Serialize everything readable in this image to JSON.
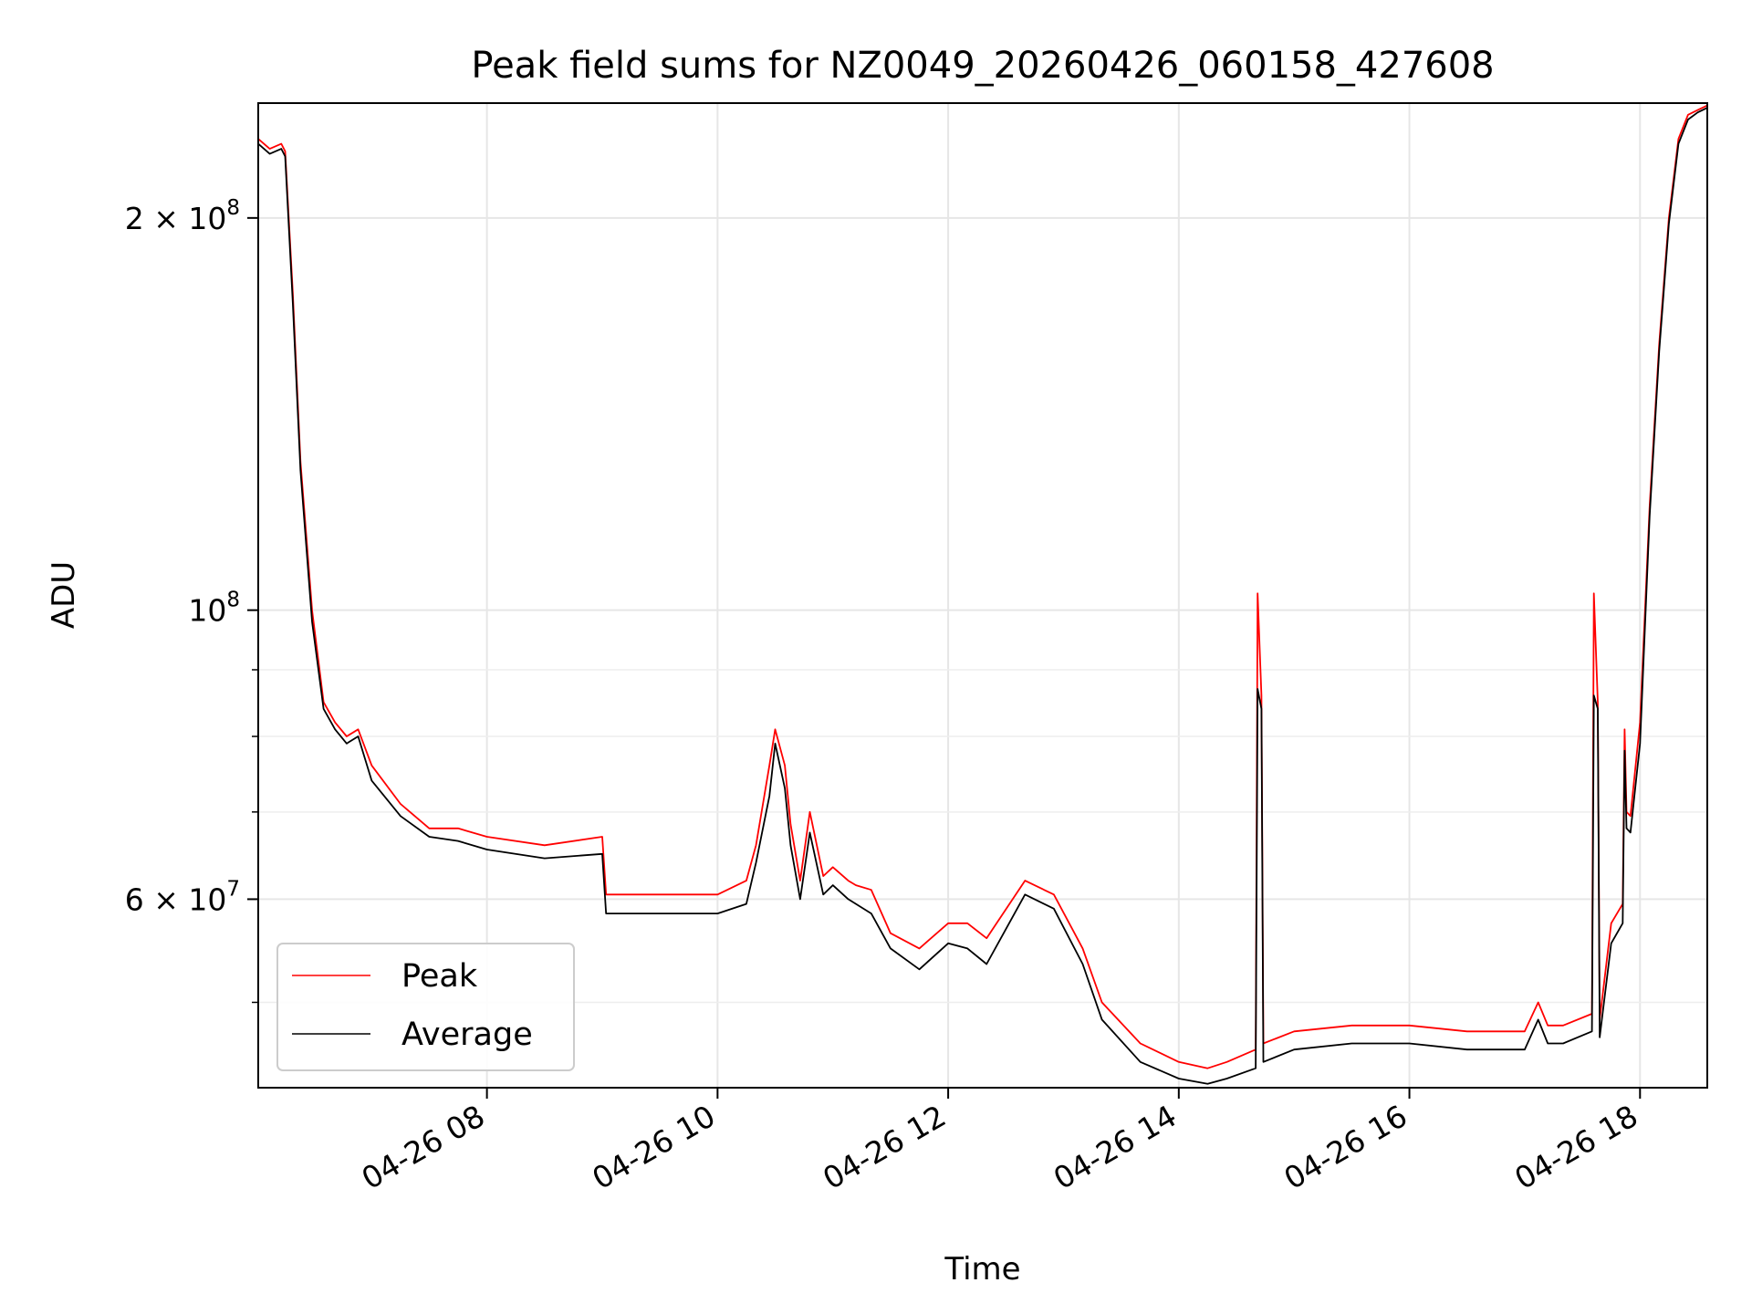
{
  "chart_data": {
    "type": "line",
    "title": "Peak field sums for NZ0049_20260426_060158_427608",
    "xlabel": "Time",
    "ylabel": "ADU",
    "yscale": "log",
    "grid": true,
    "legend_placement": "lower-left",
    "xlim": [
      "2026-04-26 06:01",
      "2026-04-26 18:35"
    ],
    "ylim": [
      43000000,
      245000000
    ],
    "x_ticks": [
      {
        "value": "2026-04-26 08:00",
        "label": "04-26 08"
      },
      {
        "value": "2026-04-26 10:00",
        "label": "04-26 10"
      },
      {
        "value": "2026-04-26 12:00",
        "label": "04-26 12"
      },
      {
        "value": "2026-04-26 14:00",
        "label": "04-26 14"
      },
      {
        "value": "2026-04-26 16:00",
        "label": "04-26 16"
      },
      {
        "value": "2026-04-26 18:00",
        "label": "04-26 18"
      }
    ],
    "y_major_ticks": [
      {
        "value": 200000000,
        "label_base": "2 × 10",
        "label_exp": "8"
      },
      {
        "value": 100000000,
        "label_base": "10",
        "label_exp": "8"
      },
      {
        "value": 60000000,
        "label_base": "6 × 10",
        "label_exp": "7"
      }
    ],
    "y_minor_ticks": [
      50000000,
      70000000,
      80000000,
      90000000
    ],
    "x_values": [
      "2026-04-26 06:01",
      "2026-04-26 06:07",
      "2026-04-26 06:13",
      "2026-04-26 06:15",
      "2026-04-26 06:19",
      "2026-04-26 06:23",
      "2026-04-26 06:29",
      "2026-04-26 06:35",
      "2026-04-26 06:41",
      "2026-04-26 06:47",
      "2026-04-26 06:53",
      "2026-04-26 07:00",
      "2026-04-26 07:15",
      "2026-04-26 07:30",
      "2026-04-26 07:45",
      "2026-04-26 08:00",
      "2026-04-26 08:30",
      "2026-04-26 09:00",
      "2026-04-26 09:02",
      "2026-04-26 09:30",
      "2026-04-26 10:00",
      "2026-04-26 10:15",
      "2026-04-26 10:20",
      "2026-04-26 10:27",
      "2026-04-26 10:30",
      "2026-04-26 10:35",
      "2026-04-26 10:38",
      "2026-04-26 10:43",
      "2026-04-26 10:48",
      "2026-04-26 10:55",
      "2026-04-26 11:00",
      "2026-04-26 11:08",
      "2026-04-26 11:12",
      "2026-04-26 11:20",
      "2026-04-26 11:30",
      "2026-04-26 11:45",
      "2026-04-26 12:00",
      "2026-04-26 12:10",
      "2026-04-26 12:20",
      "2026-04-26 12:40",
      "2026-04-26 12:55",
      "2026-04-26 13:10",
      "2026-04-26 13:20",
      "2026-04-26 13:40",
      "2026-04-26 14:00",
      "2026-04-26 14:15",
      "2026-04-26 14:25",
      "2026-04-26 14:40",
      "2026-04-26 14:41",
      "2026-04-26 14:43",
      "2026-04-26 14:44",
      "2026-04-26 15:00",
      "2026-04-26 15:30",
      "2026-04-26 16:00",
      "2026-04-26 16:30",
      "2026-04-26 17:00",
      "2026-04-26 17:07",
      "2026-04-26 17:12",
      "2026-04-26 17:20",
      "2026-04-26 17:35",
      "2026-04-26 17:36",
      "2026-04-26 17:38",
      "2026-04-26 17:39",
      "2026-04-26 17:45",
      "2026-04-26 17:51",
      "2026-04-26 17:52",
      "2026-04-26 17:53",
      "2026-04-26 17:55",
      "2026-04-26 18:00",
      "2026-04-26 18:05",
      "2026-04-26 18:10",
      "2026-04-26 18:15",
      "2026-04-26 18:20",
      "2026-04-26 18:25",
      "2026-04-26 18:30",
      "2026-04-26 18:35"
    ],
    "series": [
      {
        "name": "Peak",
        "color": "#ff0000",
        "values": [
          230000000,
          226000000,
          228000000,
          225000000,
          175000000,
          130000000,
          100000000,
          85000000,
          82000000,
          80000000,
          81000000,
          76000000,
          71000000,
          68000000,
          68000000,
          67000000,
          66000000,
          67000000,
          60500000,
          60500000,
          60500000,
          62000000,
          66000000,
          76000000,
          81000000,
          76000000,
          68500000,
          62000000,
          70000000,
          62500000,
          63500000,
          62000000,
          61500000,
          61000000,
          56500000,
          55000000,
          57500000,
          57500000,
          56000000,
          62000000,
          60500000,
          55000000,
          50000000,
          46500000,
          45000000,
          44500000,
          45000000,
          46000000,
          103000000,
          86000000,
          46500000,
          47500000,
          48000000,
          48000000,
          47500000,
          47500000,
          50000000,
          48000000,
          48000000,
          49000000,
          103000000,
          85000000,
          48500000,
          57500000,
          59500000,
          81000000,
          70000000,
          69500000,
          82000000,
          120000000,
          160000000,
          200000000,
          230000000,
          240000000,
          242000000,
          244000000
        ]
      },
      {
        "name": "Average",
        "color": "#000000",
        "values": [
          228000000,
          224000000,
          226000000,
          223000000,
          172000000,
          128000000,
          98000000,
          84000000,
          81000000,
          79000000,
          80000000,
          74000000,
          69500000,
          67000000,
          66500000,
          65500000,
          64500000,
          65000000,
          58500000,
          58500000,
          58500000,
          59500000,
          64000000,
          72000000,
          79000000,
          73000000,
          66000000,
          60000000,
          67500000,
          60500000,
          61500000,
          60000000,
          59500000,
          58500000,
          55000000,
          53000000,
          55500000,
          55000000,
          53500000,
          60500000,
          59000000,
          53500000,
          48500000,
          45000000,
          43700000,
          43300000,
          43700000,
          44500000,
          87000000,
          84000000,
          45000000,
          46000000,
          46500000,
          46500000,
          46000000,
          46000000,
          48500000,
          46500000,
          46500000,
          47500000,
          86000000,
          84000000,
          47000000,
          55500000,
          57500000,
          78000000,
          68000000,
          67500000,
          79000000,
          118000000,
          158000000,
          198000000,
          228000000,
          238000000,
          241000000,
          243000000
        ]
      }
    ]
  }
}
